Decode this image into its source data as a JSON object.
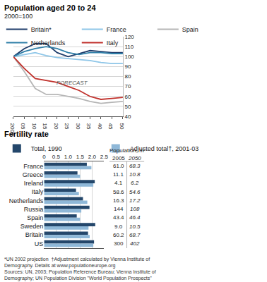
{
  "chart_data": [
    {
      "type": "line",
      "title": "Population aged 20 to 24",
      "subtitle": "2000=100",
      "x": [
        2000,
        2005,
        2010,
        2015,
        2020,
        2025,
        2030,
        2035,
        2040,
        2045,
        2050
      ],
      "series": [
        {
          "name": "Britain*",
          "color": "#1f3d6b",
          "values": [
            100,
            108,
            113,
            113,
            104,
            100,
            103,
            106,
            105,
            104,
            104
          ]
        },
        {
          "name": "France",
          "color": "#8ec6e8",
          "values": [
            100,
            102,
            104,
            101,
            99,
            98,
            97,
            96,
            94,
            93,
            93
          ]
        },
        {
          "name": "Spain",
          "color": "#b5b5b5",
          "values": [
            100,
            85,
            68,
            62,
            62,
            60,
            58,
            55,
            53,
            54,
            55
          ]
        },
        {
          "name": "Netherlands",
          "color": "#2f7fa8",
          "values": [
            100,
            105,
            108,
            110,
            108,
            104,
            102,
            104,
            104,
            103,
            103
          ]
        },
        {
          "name": "Italy",
          "color": "#c0302b",
          "values": [
            100,
            88,
            78,
            76,
            74,
            70,
            66,
            60,
            57,
            58,
            59
          ]
        }
      ],
      "xlim": [
        2000,
        2050
      ],
      "xticks": [
        2000,
        {
          "value": 2005,
          "label": "05"
        },
        {
          "value": 2010,
          "label": "10"
        },
        {
          "value": 2015,
          "label": "15"
        },
        {
          "value": 2020,
          "label": "20"
        },
        {
          "value": 2025,
          "label": "25"
        },
        {
          "value": 2030,
          "label": "30"
        },
        {
          "value": 2035,
          "label": "35"
        },
        {
          "value": 2040,
          "label": "40"
        },
        {
          "value": 2045,
          "label": "45"
        },
        {
          "value": 2050,
          "label": "50"
        }
      ],
      "ylim": [
        40,
        120
      ],
      "yticks": [
        40,
        50,
        60,
        70,
        80,
        90,
        100,
        110,
        120
      ],
      "grid": true,
      "legend": "top left",
      "annotations": [
        "FORECAST"
      ]
    },
    {
      "type": "bar",
      "title": "Fertility rate",
      "orientation": "horizontal",
      "categories": [
        "France",
        "Greece",
        "Ireland",
        "Italy",
        "Netherlands",
        "Russia",
        "Spain",
        "Sweden",
        "Britain",
        "US"
      ],
      "series": [
        {
          "name": "Total, 1990",
          "color": "#24476b",
          "values": [
            1.78,
            1.39,
            2.11,
            1.33,
            1.62,
            1.89,
            1.36,
            2.13,
            1.83,
            2.08
          ]
        },
        {
          "name": "Adjusted total†, 2001-03",
          "color": "#8fb8d8",
          "values": [
            1.97,
            1.5,
            2.05,
            1.45,
            1.8,
            1.55,
            1.5,
            1.85,
            1.9,
            2.05
          ]
        }
      ],
      "xlim": [
        0,
        2.5
      ],
      "xticks": [
        0,
        0.5,
        {
          "value": 1,
          "label": "1.0"
        },
        1.5,
        {
          "value": 2,
          "label": "2.0"
        },
        2.5
      ],
      "grid": true,
      "legend": "top left"
    }
  ],
  "population_table": {
    "title": "Population, m",
    "columns": [
      "2005",
      "2050"
    ],
    "rows": [
      [
        "61.0",
        "68.3"
      ],
      [
        "11.1",
        "10.8"
      ],
      [
        "4.1",
        "6.2"
      ],
      [
        "58.6",
        "54.6"
      ],
      [
        "16.3",
        "17.2"
      ],
      [
        "144",
        "108"
      ],
      [
        "43.4",
        "46.4"
      ],
      [
        "9.0",
        "10.5"
      ],
      [
        "60.2",
        "68.7"
      ],
      [
        "300",
        "402"
      ]
    ]
  },
  "footnotes": [
    "*UN 2002 projection  †Adjustment calculated by Vienna Institute of",
    "Demography. Details at www.populationeurope.org",
    "Sources: UN, 2003; Population Reference Bureau; Vienna Institute of",
    "Demography; UN Population Division \"World Population Prospects\""
  ]
}
